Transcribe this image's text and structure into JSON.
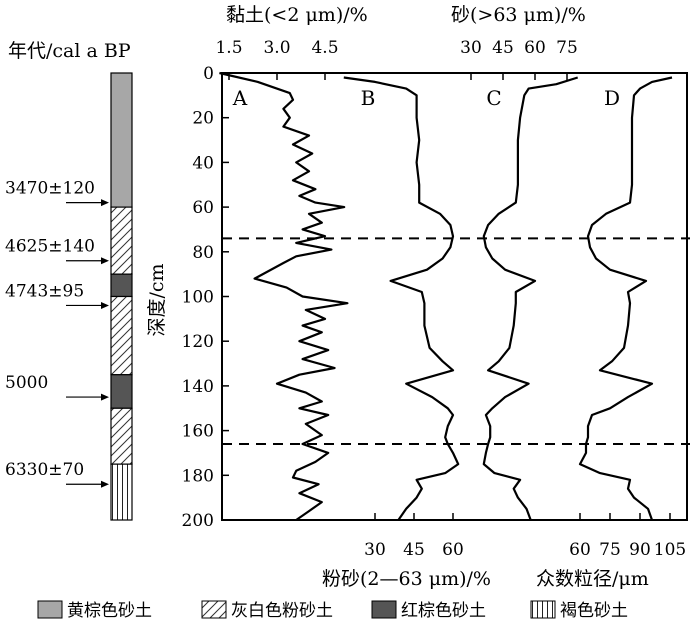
{
  "chart_data": {
    "type": "line",
    "column_header": "年代/cal a BP",
    "top_axis_labels": {
      "clay": "黏土(<2 μm)/%",
      "sand": "砂(>63 μm)/%"
    },
    "bottom_axis_labels": {
      "silt": "粉砂(2—63 μm)/%",
      "mode": "众数粒径/μm"
    },
    "ylabel": "深度/cm",
    "yticks": [
      "0",
      "20",
      "40",
      "60",
      "80",
      "100",
      "120",
      "140",
      "160",
      "180",
      "200"
    ],
    "ylim": [
      0,
      200
    ],
    "axes": {
      "clay": {
        "ticks": [
          "1.5",
          "3.0",
          "4.5"
        ],
        "range": [
          1.5,
          4.5
        ]
      },
      "sand": {
        "ticks": [
          "30",
          "45",
          "60",
          "75"
        ],
        "range": [
          30,
          75
        ]
      },
      "silt": {
        "ticks": [
          "30",
          "45",
          "60"
        ],
        "range": [
          30,
          60
        ]
      },
      "mode": {
        "ticks": [
          "60",
          "75",
          "90",
          "105"
        ],
        "range": [
          60,
          105
        ]
      }
    },
    "boundaries_depth": [
      74,
      166
    ],
    "series": [
      {
        "name": "A",
        "axis": "clay",
        "points": [
          [
            1.2,
            0
          ],
          [
            2.4,
            4
          ],
          [
            3.4,
            9
          ],
          [
            3.5,
            12
          ],
          [
            3.2,
            16
          ],
          [
            3.4,
            20
          ],
          [
            3.2,
            24
          ],
          [
            4.0,
            28
          ],
          [
            3.5,
            32
          ],
          [
            4.1,
            36
          ],
          [
            3.6,
            40
          ],
          [
            4.0,
            44
          ],
          [
            3.5,
            48
          ],
          [
            4.2,
            52
          ],
          [
            3.7,
            55
          ],
          [
            4.2,
            58
          ],
          [
            5.1,
            60
          ],
          [
            4.0,
            63
          ],
          [
            4.4,
            67
          ],
          [
            3.8,
            70
          ],
          [
            4.5,
            73
          ],
          [
            3.6,
            76
          ],
          [
            4.7,
            79
          ],
          [
            3.6,
            82
          ],
          [
            3.2,
            85
          ],
          [
            2.3,
            92
          ],
          [
            3.3,
            96
          ],
          [
            3.8,
            100
          ],
          [
            5.2,
            103
          ],
          [
            3.9,
            106
          ],
          [
            4.5,
            110
          ],
          [
            3.8,
            113
          ],
          [
            4.4,
            116
          ],
          [
            3.7,
            120
          ],
          [
            4.6,
            124
          ],
          [
            3.8,
            128
          ],
          [
            4.8,
            132
          ],
          [
            3.7,
            135
          ],
          [
            3.0,
            139
          ],
          [
            3.9,
            143
          ],
          [
            4.4,
            147
          ],
          [
            3.7,
            150
          ],
          [
            4.6,
            153
          ],
          [
            3.9,
            157
          ],
          [
            4.4,
            162
          ],
          [
            3.8,
            166
          ],
          [
            4.6,
            170
          ],
          [
            4.2,
            174
          ],
          [
            3.6,
            178
          ],
          [
            3.5,
            181
          ],
          [
            4.3,
            184
          ],
          [
            3.7,
            188
          ],
          [
            4.4,
            192
          ],
          [
            4.0,
            196
          ],
          [
            3.6,
            200
          ]
        ]
      },
      {
        "name": "B",
        "axis": "silt",
        "points": [
          [
            18,
            2
          ],
          [
            30,
            4
          ],
          [
            42,
            7
          ],
          [
            46,
            10
          ],
          [
            46,
            20
          ],
          [
            47,
            30
          ],
          [
            46,
            40
          ],
          [
            47,
            50
          ],
          [
            47,
            58
          ],
          [
            55,
            63
          ],
          [
            59,
            68
          ],
          [
            60,
            73
          ],
          [
            59,
            78
          ],
          [
            56,
            83
          ],
          [
            50,
            88
          ],
          [
            36,
            93
          ],
          [
            48,
            98
          ],
          [
            49,
            103
          ],
          [
            49,
            113
          ],
          [
            51,
            123
          ],
          [
            56,
            129
          ],
          [
            60,
            133
          ],
          [
            42,
            139
          ],
          [
            52,
            145
          ],
          [
            58,
            150
          ],
          [
            60,
            153
          ],
          [
            58,
            158
          ],
          [
            57,
            163
          ],
          [
            58,
            166
          ],
          [
            60,
            170
          ],
          [
            62,
            175
          ],
          [
            57,
            179
          ],
          [
            46,
            182
          ],
          [
            48,
            186
          ],
          [
            46,
            190
          ],
          [
            42,
            195
          ],
          [
            39,
            200
          ]
        ]
      },
      {
        "name": "C",
        "axis": "sand",
        "points": [
          [
            80,
            2
          ],
          [
            70,
            5
          ],
          [
            57,
            7
          ],
          [
            55,
            10
          ],
          [
            53,
            20
          ],
          [
            52,
            30
          ],
          [
            52,
            40
          ],
          [
            52,
            50
          ],
          [
            51,
            58
          ],
          [
            43,
            63
          ],
          [
            38,
            68
          ],
          [
            36,
            73
          ],
          [
            37,
            78
          ],
          [
            40,
            83
          ],
          [
            46,
            88
          ],
          [
            60,
            93
          ],
          [
            51,
            98
          ],
          [
            51,
            103
          ],
          [
            50,
            113
          ],
          [
            48,
            123
          ],
          [
            43,
            129
          ],
          [
            38,
            133
          ],
          [
            57,
            139
          ],
          [
            46,
            145
          ],
          [
            40,
            150
          ],
          [
            37,
            153
          ],
          [
            39,
            158
          ],
          [
            39,
            163
          ],
          [
            38,
            166
          ],
          [
            37,
            170
          ],
          [
            36,
            175
          ],
          [
            41,
            179
          ],
          [
            53,
            182
          ],
          [
            50,
            186
          ],
          [
            52,
            190
          ],
          [
            56,
            195
          ],
          [
            58,
            200
          ]
        ]
      },
      {
        "name": "D",
        "axis": "mode",
        "points": [
          [
            106,
            2
          ],
          [
            96,
            4
          ],
          [
            90,
            7
          ],
          [
            87,
            10
          ],
          [
            86,
            20
          ],
          [
            86,
            30
          ],
          [
            86,
            40
          ],
          [
            86,
            50
          ],
          [
            85,
            58
          ],
          [
            73,
            63
          ],
          [
            66,
            68
          ],
          [
            64,
            73
          ],
          [
            65,
            78
          ],
          [
            68,
            83
          ],
          [
            75,
            88
          ],
          [
            93,
            93
          ],
          [
            84,
            98
          ],
          [
            85,
            103
          ],
          [
            84,
            113
          ],
          [
            82,
            123
          ],
          [
            76,
            129
          ],
          [
            70,
            133
          ],
          [
            96,
            139
          ],
          [
            84,
            145
          ],
          [
            75,
            150
          ],
          [
            66,
            153
          ],
          [
            64,
            158
          ],
          [
            64,
            163
          ],
          [
            63,
            166
          ],
          [
            63,
            170
          ],
          [
            60,
            175
          ],
          [
            70,
            179
          ],
          [
            85,
            182
          ],
          [
            84,
            186
          ],
          [
            87,
            190
          ],
          [
            94,
            195
          ],
          [
            96,
            200
          ]
        ]
      }
    ],
    "column": {
      "layers": [
        {
          "from": 0,
          "to": 60,
          "type": "yellowbrown"
        },
        {
          "from": 60,
          "to": 90,
          "type": "greywhite"
        },
        {
          "from": 90,
          "to": 100,
          "type": "redbrown"
        },
        {
          "from": 100,
          "to": 135,
          "type": "greywhite"
        },
        {
          "from": 135,
          "to": 150,
          "type": "redbrown"
        },
        {
          "from": 150,
          "to": 175,
          "type": "greywhite"
        },
        {
          "from": 175,
          "to": 200,
          "type": "brown"
        }
      ],
      "dates": [
        {
          "label": "3470±120",
          "depth": 58
        },
        {
          "label": "4625±140",
          "depth": 84
        },
        {
          "label": "4743±95",
          "depth": 104
        },
        {
          "label": "5000",
          "depth": 145
        },
        {
          "label": "6330±70",
          "depth": 184
        }
      ]
    },
    "legend": [
      {
        "label": "黄棕色砂土",
        "type": "yellowbrown"
      },
      {
        "label": "灰白色粉砂土",
        "type": "greywhite"
      },
      {
        "label": "红棕色砂土",
        "type": "redbrown"
      },
      {
        "label": "褐色砂土",
        "type": "brown"
      }
    ]
  }
}
